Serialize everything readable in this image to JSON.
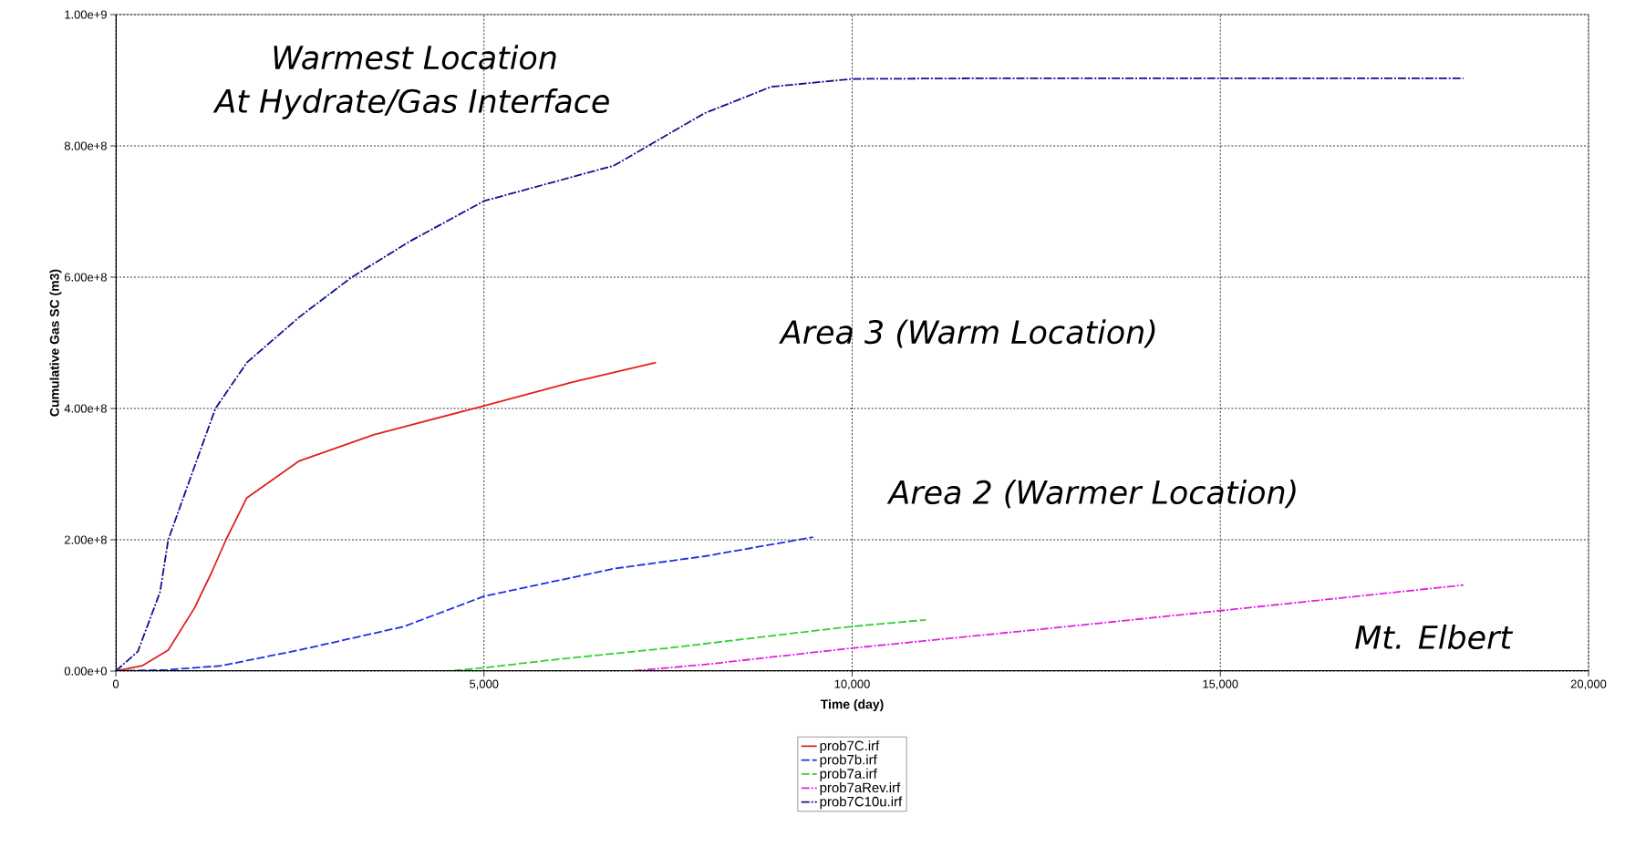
{
  "chart_data": {
    "type": "line",
    "xlabel": "Time (day)",
    "ylabel": "Cumulative Gas SC (m3)",
    "xlim": [
      0,
      20000
    ],
    "ylim": [
      0,
      1000000000
    ],
    "xticks": [
      0,
      {
        "value": 5000,
        "label": "5,000"
      },
      {
        "value": 10000,
        "label": "10,000"
      },
      {
        "value": 15000,
        "label": "15,000"
      },
      {
        "value": 20000,
        "label": "20,000"
      }
    ],
    "yticks": [
      {
        "value": 0,
        "label": "0.00e+0"
      },
      {
        "value": 200000000,
        "label": "2.00e+8"
      },
      {
        "value": 400000000,
        "label": "4.00e+8"
      },
      {
        "value": 600000000,
        "label": "6.00e+8"
      },
      {
        "value": 800000000,
        "label": "8.00e+8"
      },
      {
        "value": 1000000000,
        "label": "1.00e+9"
      }
    ],
    "grid": true,
    "legend": "bottom",
    "annotations": [
      "Warmest Location",
      "At Hydrate/Gas Interface",
      "Area 3 (Warm Location)",
      "Area 2 (Warmer Location)",
      "Mt. Elbert"
    ],
    "series": [
      {
        "name": "prob7C.irf",
        "color": "#e02020",
        "line_style": "solid",
        "x": [
          0,
          356,
          712,
          1068,
          1300,
          1496,
          1780,
          2490,
          3500,
          5000,
          6200,
          7336
        ],
        "values": [
          0,
          8000000,
          32000000,
          96000000,
          150000000,
          200000000,
          264000000,
          320000000,
          360000000,
          404000000,
          440000000,
          470000000
        ]
      },
      {
        "name": "prob7b.irf",
        "color": "#2030e0",
        "line_style": "dashed",
        "x": [
          0,
          700,
          1424,
          2490,
          3917,
          5000,
          6766,
          8000,
          9470
        ],
        "values": [
          0,
          2000000,
          8000000,
          32000000,
          68000000,
          114000000,
          156000000,
          175000000,
          204000000
        ]
      },
      {
        "name": "prob7a.irf",
        "color": "#30d030",
        "line_style": "dashed",
        "x": [
          0,
          4500,
          5000,
          6000,
          7500,
          9000,
          10000,
          11000
        ],
        "values": [
          0,
          0,
          5000000,
          18000000,
          35000000,
          55000000,
          68000000,
          78000000
        ]
      },
      {
        "name": "prob7aRev.irf",
        "color": "#e020e0",
        "line_style": "dashdot",
        "x": [
          0,
          7000,
          8000,
          10000,
          12500,
          15000,
          18300
        ],
        "values": [
          0,
          0,
          10000000,
          35000000,
          63000000,
          92000000,
          131000000
        ]
      },
      {
        "name": "prob7C10u.irf",
        "color": "#101090",
        "line_style": "dashdot",
        "x": [
          0,
          300,
          600,
          712,
          1000,
          1353,
          1780,
          2500,
          3205,
          4000,
          5000,
          6766,
          8000,
          8900,
          10000,
          12000,
          15000,
          18300
        ],
        "values": [
          0,
          30000000,
          120000000,
          200000000,
          290000000,
          400000000,
          470000000,
          540000000,
          600000000,
          655000000,
          716000000,
          770000000,
          850000000,
          890000000,
          902000000,
          903000000,
          903000000,
          903000000
        ]
      }
    ]
  }
}
